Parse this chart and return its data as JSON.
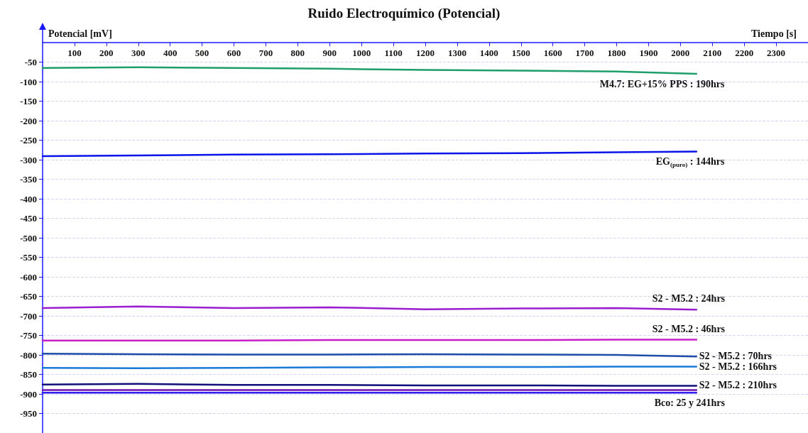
{
  "chart_data": {
    "type": "line",
    "title": "Ruido Electroquímico (Potencial)",
    "xlabel": "Tiempo [s]",
    "ylabel": "Potencial [mV]",
    "x": [
      0,
      300,
      600,
      900,
      1200,
      1500,
      1800,
      2050
    ],
    "xlim": [
      0,
      2400
    ],
    "xticks": [
      100,
      200,
      300,
      400,
      500,
      600,
      700,
      800,
      900,
      1000,
      1100,
      1200,
      1300,
      1400,
      1500,
      1600,
      1700,
      1800,
      1900,
      2000,
      2100,
      2200,
      2300
    ],
    "ylim": [
      -1000,
      0
    ],
    "yticks": [
      -950,
      -900,
      -850,
      -800,
      -750,
      -700,
      -650,
      -600,
      -550,
      -500,
      -450,
      -400,
      -350,
      -300,
      -250,
      -200,
      -150,
      -100,
      -50
    ],
    "grid": "y",
    "marker": "none",
    "line_style": "solid",
    "series": [
      {
        "name": "M4.7: EG+15% PPS : 190hrs",
        "color": "#1e9e6a",
        "values": [
          -65,
          -63,
          -65,
          -67,
          -70,
          -72,
          -74,
          -80
        ]
      },
      {
        "name": "EG$_{(puro)}$ : 144hrs",
        "color": "#0a14e8",
        "values": [
          -291,
          -289,
          -287,
          -286,
          -284,
          -283,
          -281,
          -279
        ]
      },
      {
        "name": "S2 - M5.2 : 24hrs",
        "color": "#9a1ed0",
        "values": [
          -680,
          -676,
          -680,
          -678,
          -683,
          -681,
          -680,
          -684
        ]
      },
      {
        "name": "S2 - M5.2 : 46hrs",
        "color": "#c81ec8",
        "values": [
          -763,
          -763,
          -763,
          -762,
          -762,
          -762,
          -761,
          -761
        ]
      },
      {
        "name": "S2 - M5.2 : 70hrs",
        "color": "#1e4ea8",
        "values": [
          -797,
          -798,
          -799,
          -799,
          -798,
          -799,
          -800,
          -804
        ]
      },
      {
        "name": "S2 - M5.2 : 166hrs",
        "color": "#1a7ad8",
        "values": [
          -833,
          -834,
          -833,
          -832,
          -831,
          -831,
          -830,
          -830
        ]
      },
      {
        "name": "S2 - M5.2 : 210hrs",
        "color": "#10107a",
        "values": [
          -876,
          -874,
          -877,
          -877,
          -878,
          -878,
          -879,
          -879
        ]
      },
      {
        "color": "#7010b0",
        "values": [
          -890,
          -890,
          -890,
          -890,
          -890,
          -890,
          -890,
          -890
        ]
      },
      {
        "name": "Bco: 25 y 241hrs",
        "color": "#3020f0",
        "values": [
          -897,
          -897,
          -897,
          -897,
          -897,
          -897,
          -897,
          -897
        ]
      }
    ]
  }
}
